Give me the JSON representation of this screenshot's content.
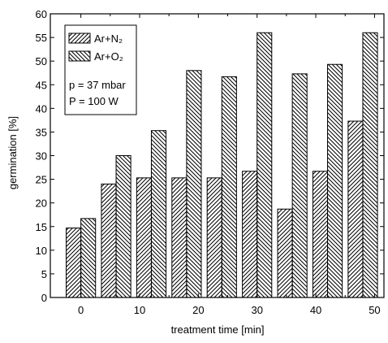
{
  "chart_data": {
    "type": "bar",
    "x": [
      0,
      6,
      12,
      18,
      24,
      30,
      36,
      42,
      48
    ],
    "series": [
      {
        "name": "Ar+N₂",
        "color": "#000000",
        "hatch": "/",
        "values": [
          14.7,
          24,
          25.3,
          25.3,
          25.3,
          26.7,
          18.7,
          26.7,
          37.3
        ]
      },
      {
        "name": "Ar+O₂",
        "color": "#000000",
        "hatch": "\\",
        "values": [
          16.7,
          30,
          35.3,
          48,
          46.7,
          56,
          47.3,
          49.3,
          56
        ]
      }
    ],
    "xlabel": "treatment time [min]",
    "ylabel": "germination [%]",
    "annotations": [
      "p = 37 mbar",
      "P = 100 W"
    ],
    "xlim": [
      -5.2,
      51.6
    ],
    "xticks": [
      0,
      10,
      20,
      30,
      40,
      50
    ],
    "xminorticks": [
      5,
      15,
      25,
      35,
      45
    ],
    "ylim": [
      0,
      60
    ],
    "yticks": [
      0,
      5,
      10,
      15,
      20,
      25,
      30,
      35,
      40,
      45,
      50,
      55,
      60
    ],
    "bar_width": 2.5,
    "legend": "upper left"
  }
}
